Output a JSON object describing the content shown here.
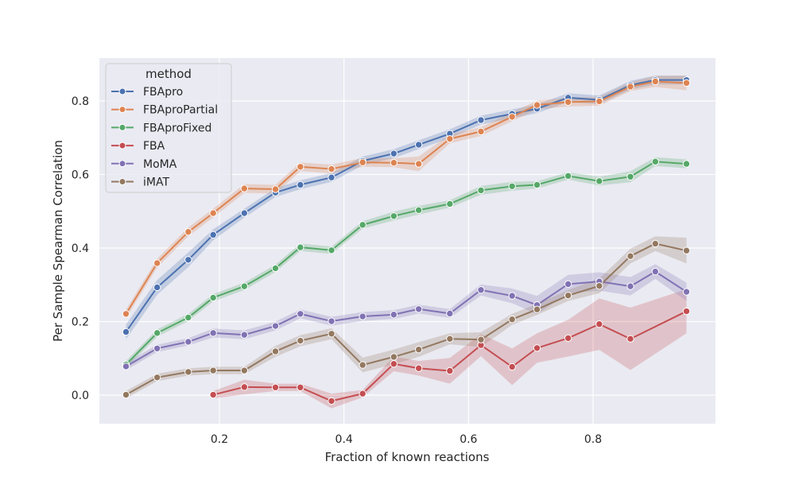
{
  "chart_data": {
    "type": "line",
    "title": "",
    "xlabel": "Fraction of known reactions",
    "ylabel": "Per Sample Spearman Correlation",
    "xlim": [
      0.0,
      1.0
    ],
    "ylim": [
      -0.08,
      0.92
    ],
    "xticks": [
      0.2,
      0.4,
      0.6,
      0.8
    ],
    "xtick_labels": [
      "0.2",
      "0.4",
      "0.6",
      "0.8"
    ],
    "yticks": [
      0.0,
      0.2,
      0.4,
      0.6,
      0.8
    ],
    "ytick_labels": [
      "0.0",
      "0.2",
      "0.4",
      "0.6",
      "0.8"
    ],
    "grid": true,
    "legend": {
      "title": "method",
      "location": "top-left"
    },
    "series": [
      {
        "name": "FBApro",
        "color": "#4c72b0",
        "x": [
          0.05,
          0.1,
          0.15,
          0.19,
          0.24,
          0.29,
          0.33,
          0.38,
          0.43,
          0.48,
          0.52,
          0.57,
          0.62,
          0.67,
          0.71,
          0.76,
          0.81,
          0.86,
          0.9,
          0.95
        ],
        "y": [
          0.172,
          0.293,
          0.368,
          0.436,
          0.495,
          0.551,
          0.572,
          0.592,
          0.637,
          0.657,
          0.681,
          0.711,
          0.748,
          0.765,
          0.779,
          0.809,
          0.803,
          0.843,
          0.857,
          0.857
        ],
        "band": [
          0.02,
          0.02,
          0.02,
          0.015,
          0.012,
          0.012,
          0.012,
          0.012,
          0.012,
          0.012,
          0.012,
          0.012,
          0.012,
          0.012,
          0.012,
          0.012,
          0.012,
          0.012,
          0.012,
          0.012
        ]
      },
      {
        "name": "FBAproPartial",
        "color": "#dd8452",
        "x": [
          0.05,
          0.1,
          0.15,
          0.19,
          0.24,
          0.29,
          0.33,
          0.38,
          0.43,
          0.48,
          0.52,
          0.57,
          0.62,
          0.67,
          0.71,
          0.76,
          0.81,
          0.86,
          0.9,
          0.95
        ],
        "y": [
          0.221,
          0.359,
          0.444,
          0.495,
          0.562,
          0.56,
          0.621,
          0.615,
          0.633,
          0.632,
          0.629,
          0.697,
          0.717,
          0.757,
          0.789,
          0.797,
          0.799,
          0.839,
          0.853,
          0.849
        ],
        "band": [
          0.012,
          0.012,
          0.012,
          0.012,
          0.012,
          0.012,
          0.012,
          0.012,
          0.012,
          0.012,
          0.02,
          0.012,
          0.012,
          0.012,
          0.012,
          0.012,
          0.012,
          0.012,
          0.015,
          0.02
        ]
      },
      {
        "name": "FBAproFixed",
        "color": "#55a868",
        "x": [
          0.05,
          0.1,
          0.15,
          0.19,
          0.24,
          0.29,
          0.33,
          0.38,
          0.43,
          0.48,
          0.52,
          0.57,
          0.62,
          0.67,
          0.71,
          0.76,
          0.81,
          0.86,
          0.9,
          0.95
        ],
        "y": [
          0.083,
          0.169,
          0.211,
          0.265,
          0.296,
          0.345,
          0.402,
          0.394,
          0.463,
          0.487,
          0.503,
          0.52,
          0.557,
          0.568,
          0.572,
          0.596,
          0.582,
          0.594,
          0.635,
          0.629
        ],
        "band": [
          0.01,
          0.01,
          0.01,
          0.01,
          0.01,
          0.01,
          0.01,
          0.01,
          0.01,
          0.012,
          0.012,
          0.01,
          0.012,
          0.012,
          0.01,
          0.01,
          0.012,
          0.015,
          0.012,
          0.012
        ]
      },
      {
        "name": "FBA",
        "color": "#c44e52",
        "x": [
          0.19,
          0.24,
          0.29,
          0.33,
          0.38,
          0.43,
          0.48,
          0.52,
          0.57,
          0.62,
          0.67,
          0.71,
          0.76,
          0.81,
          0.86,
          0.95
        ],
        "y": [
          0.001,
          0.022,
          0.021,
          0.021,
          -0.016,
          0.004,
          0.085,
          0.073,
          0.066,
          0.136,
          0.077,
          0.128,
          0.155,
          0.193,
          0.153,
          0.228
        ],
        "band": [
          0.01,
          0.02,
          0.01,
          0.01,
          0.02,
          0.01,
          0.02,
          0.02,
          0.035,
          0.03,
          0.05,
          0.04,
          0.05,
          0.07,
          0.085,
          0.06
        ]
      },
      {
        "name": "MoMA",
        "color": "#8172b3",
        "x": [
          0.05,
          0.1,
          0.15,
          0.19,
          0.24,
          0.29,
          0.33,
          0.38,
          0.43,
          0.48,
          0.52,
          0.57,
          0.62,
          0.67,
          0.71,
          0.76,
          0.81,
          0.86,
          0.9,
          0.95
        ],
        "y": [
          0.078,
          0.127,
          0.145,
          0.169,
          0.164,
          0.188,
          0.221,
          0.201,
          0.214,
          0.219,
          0.234,
          0.222,
          0.286,
          0.27,
          0.245,
          0.302,
          0.309,
          0.296,
          0.336,
          0.281
        ],
        "band": [
          0.01,
          0.01,
          0.01,
          0.012,
          0.012,
          0.012,
          0.012,
          0.012,
          0.012,
          0.012,
          0.012,
          0.012,
          0.015,
          0.02,
          0.025,
          0.025,
          0.025,
          0.025,
          0.02,
          0.025
        ]
      },
      {
        "name": "iMAT",
        "color": "#937860",
        "x": [
          0.05,
          0.1,
          0.15,
          0.19,
          0.24,
          0.29,
          0.33,
          0.38,
          0.43,
          0.48,
          0.52,
          0.57,
          0.62,
          0.67,
          0.71,
          0.76,
          0.81,
          0.86,
          0.9,
          0.95
        ],
        "y": [
          0.001,
          0.048,
          0.063,
          0.067,
          0.067,
          0.119,
          0.148,
          0.167,
          0.082,
          0.104,
          0.124,
          0.153,
          0.151,
          0.206,
          0.233,
          0.271,
          0.297,
          0.378,
          0.412,
          0.393
        ],
        "band": [
          0.01,
          0.01,
          0.01,
          0.01,
          0.01,
          0.015,
          0.015,
          0.015,
          0.02,
          0.02,
          0.02,
          0.015,
          0.02,
          0.015,
          0.015,
          0.015,
          0.02,
          0.02,
          0.02,
          0.035
        ]
      }
    ]
  }
}
